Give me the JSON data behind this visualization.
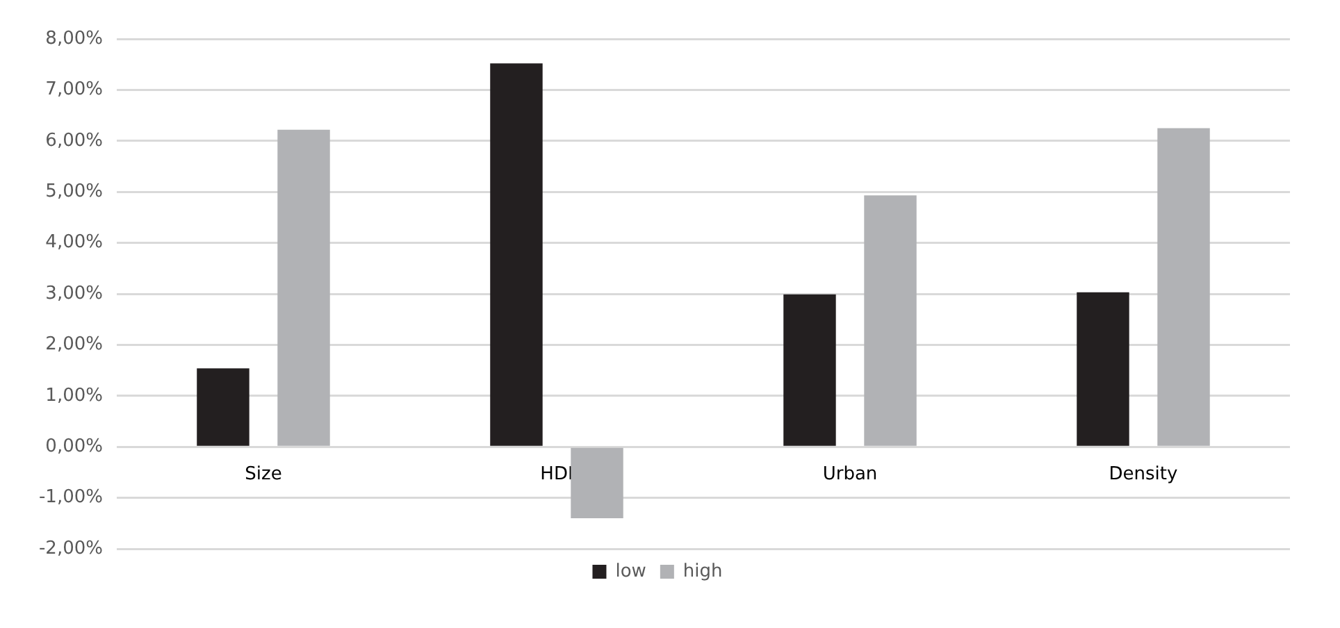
{
  "chart_data": {
    "type": "bar",
    "categories": [
      "Size",
      "HDI",
      "Urban",
      "Density"
    ],
    "series": [
      {
        "name": "low",
        "color": "#231f20",
        "values": [
          1.54,
          7.52,
          2.99,
          3.03
        ]
      },
      {
        "name": "high",
        "color": "#b1b2b5",
        "values": [
          6.22,
          -1.4,
          4.93,
          6.25
        ]
      }
    ],
    "ylim": [
      -2,
      8
    ],
    "yticks": [
      {
        "value": -2,
        "label": "-2,00%"
      },
      {
        "value": -1,
        "label": "-1,00%"
      },
      {
        "value": 0,
        "label": "0,00%"
      },
      {
        "value": 1,
        "label": "1,00%"
      },
      {
        "value": 2,
        "label": "2,00%"
      },
      {
        "value": 3,
        "label": "3,00%"
      },
      {
        "value": 4,
        "label": "4,00%"
      },
      {
        "value": 5,
        "label": "5,00%"
      },
      {
        "value": 6,
        "label": "6,00%"
      },
      {
        "value": 7,
        "label": "7,00%"
      },
      {
        "value": 8,
        "label": "8,00%"
      }
    ],
    "grid": "y",
    "legend": "bottom"
  }
}
